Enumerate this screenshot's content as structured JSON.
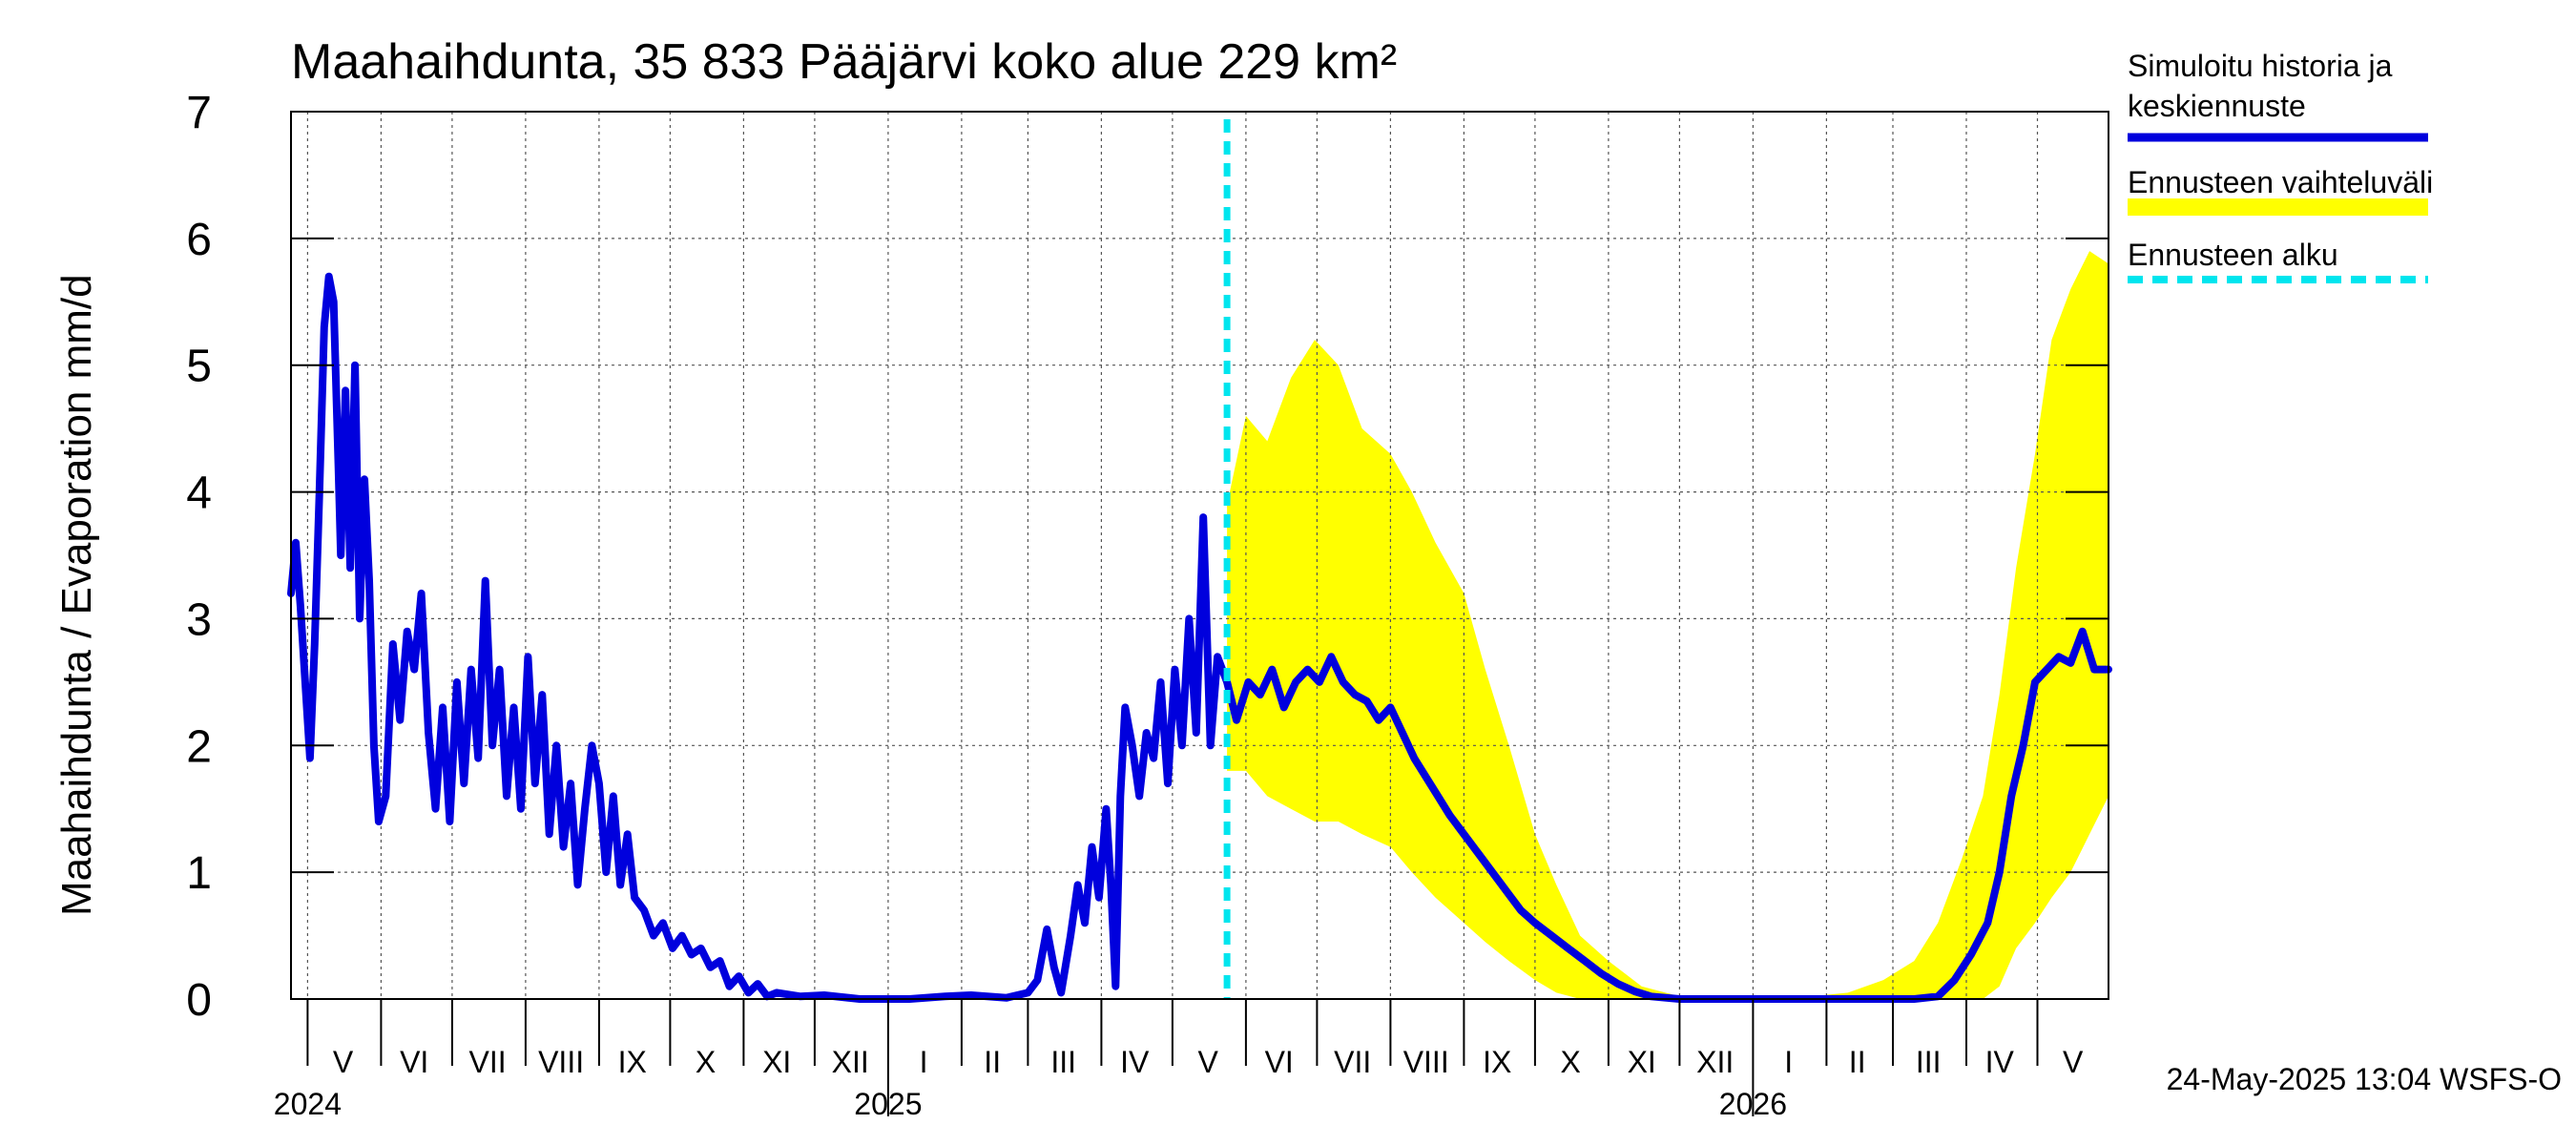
{
  "chart_data": {
    "type": "line",
    "title": "Maahaihdunta, 35 833 Pääjärvi koko alue 229 km²",
    "ylabel": "Maahaihdunta / Evaporation   mm/d",
    "ylim": [
      0,
      7
    ],
    "yticks": [
      0,
      1,
      2,
      3,
      4,
      5,
      6,
      7
    ],
    "grid": true,
    "legend_position": "right",
    "xlim": [
      "2024-04-24",
      "2026-05-31"
    ],
    "forecast_start": "2025-05-24",
    "month_labels": [
      {
        "date": "2024-05-16",
        "text": "V"
      },
      {
        "date": "2024-06-15",
        "text": "VI"
      },
      {
        "date": "2024-07-16",
        "text": "VII"
      },
      {
        "date": "2024-08-16",
        "text": "VIII"
      },
      {
        "date": "2024-09-15",
        "text": "IX"
      },
      {
        "date": "2024-10-16",
        "text": "X"
      },
      {
        "date": "2024-11-15",
        "text": "XI"
      },
      {
        "date": "2024-12-16",
        "text": "XII"
      },
      {
        "date": "2025-01-16",
        "text": "I"
      },
      {
        "date": "2025-02-14",
        "text": "II"
      },
      {
        "date": "2025-03-16",
        "text": "III"
      },
      {
        "date": "2025-04-15",
        "text": "IV"
      },
      {
        "date": "2025-05-16",
        "text": "V"
      },
      {
        "date": "2025-06-15",
        "text": "VI"
      },
      {
        "date": "2025-07-16",
        "text": "VII"
      },
      {
        "date": "2025-08-16",
        "text": "VIII"
      },
      {
        "date": "2025-09-15",
        "text": "IX"
      },
      {
        "date": "2025-10-16",
        "text": "X"
      },
      {
        "date": "2025-11-15",
        "text": "XI"
      },
      {
        "date": "2025-12-16",
        "text": "XII"
      },
      {
        "date": "2026-01-16",
        "text": "I"
      },
      {
        "date": "2026-02-14",
        "text": "II"
      },
      {
        "date": "2026-03-16",
        "text": "III"
      },
      {
        "date": "2026-04-15",
        "text": "IV"
      },
      {
        "date": "2026-05-16",
        "text": "V"
      }
    ],
    "year_labels": [
      {
        "date": "2024-05-01",
        "text": "2024"
      },
      {
        "date": "2025-01-01",
        "text": "2025"
      },
      {
        "date": "2026-01-01",
        "text": "2026"
      }
    ],
    "legend": [
      {
        "label_lines": [
          "Simuloitu historia ja",
          "keskiennuste"
        ],
        "color": "#0000dd",
        "style": "solid"
      },
      {
        "label_lines": [
          "Ennusteen vaihteluväli"
        ],
        "color": "#ffff00",
        "style": "band"
      },
      {
        "label_lines": [
          "Ennusteen alku"
        ],
        "color": "#00e5ee",
        "style": "dashed"
      }
    ],
    "series": [
      {
        "name": "Simuloitu historia ja keskiennuste",
        "color": "#0000dd",
        "points": [
          [
            "2024-04-24",
            3.2
          ],
          [
            "2024-04-26",
            3.6
          ],
          [
            "2024-04-28",
            3.1
          ],
          [
            "2024-04-30",
            2.5
          ],
          [
            "2024-05-02",
            1.9
          ],
          [
            "2024-05-04",
            2.8
          ],
          [
            "2024-05-06",
            4.0
          ],
          [
            "2024-05-08",
            5.3
          ],
          [
            "2024-05-10",
            5.7
          ],
          [
            "2024-05-12",
            5.5
          ],
          [
            "2024-05-14",
            4.2
          ],
          [
            "2024-05-15",
            3.5
          ],
          [
            "2024-05-17",
            4.8
          ],
          [
            "2024-05-19",
            3.4
          ],
          [
            "2024-05-21",
            5.0
          ],
          [
            "2024-05-23",
            3.0
          ],
          [
            "2024-05-25",
            4.1
          ],
          [
            "2024-05-27",
            3.3
          ],
          [
            "2024-05-29",
            2.0
          ],
          [
            "2024-05-31",
            1.4
          ],
          [
            "2024-06-03",
            1.6
          ],
          [
            "2024-06-06",
            2.8
          ],
          [
            "2024-06-09",
            2.2
          ],
          [
            "2024-06-12",
            2.9
          ],
          [
            "2024-06-15",
            2.6
          ],
          [
            "2024-06-18",
            3.2
          ],
          [
            "2024-06-21",
            2.1
          ],
          [
            "2024-06-24",
            1.5
          ],
          [
            "2024-06-27",
            2.3
          ],
          [
            "2024-06-30",
            1.4
          ],
          [
            "2024-07-03",
            2.5
          ],
          [
            "2024-07-06",
            1.7
          ],
          [
            "2024-07-09",
            2.6
          ],
          [
            "2024-07-12",
            1.9
          ],
          [
            "2024-07-15",
            3.3
          ],
          [
            "2024-07-18",
            2.0
          ],
          [
            "2024-07-21",
            2.6
          ],
          [
            "2024-07-24",
            1.6
          ],
          [
            "2024-07-27",
            2.3
          ],
          [
            "2024-07-30",
            1.5
          ],
          [
            "2024-08-02",
            2.7
          ],
          [
            "2024-08-05",
            1.7
          ],
          [
            "2024-08-08",
            2.4
          ],
          [
            "2024-08-11",
            1.3
          ],
          [
            "2024-08-14",
            2.0
          ],
          [
            "2024-08-17",
            1.2
          ],
          [
            "2024-08-20",
            1.7
          ],
          [
            "2024-08-23",
            0.9
          ],
          [
            "2024-08-26",
            1.5
          ],
          [
            "2024-08-29",
            2.0
          ],
          [
            "2024-09-01",
            1.7
          ],
          [
            "2024-09-04",
            1.0
          ],
          [
            "2024-09-07",
            1.6
          ],
          [
            "2024-09-10",
            0.9
          ],
          [
            "2024-09-13",
            1.3
          ],
          [
            "2024-09-16",
            0.8
          ],
          [
            "2024-09-20",
            0.7
          ],
          [
            "2024-09-24",
            0.5
          ],
          [
            "2024-09-28",
            0.6
          ],
          [
            "2024-10-02",
            0.4
          ],
          [
            "2024-10-06",
            0.5
          ],
          [
            "2024-10-10",
            0.35
          ],
          [
            "2024-10-14",
            0.4
          ],
          [
            "2024-10-18",
            0.25
          ],
          [
            "2024-10-22",
            0.3
          ],
          [
            "2024-10-26",
            0.1
          ],
          [
            "2024-10-30",
            0.18
          ],
          [
            "2024-11-03",
            0.05
          ],
          [
            "2024-11-07",
            0.12
          ],
          [
            "2024-11-11",
            0.02
          ],
          [
            "2024-11-15",
            0.05
          ],
          [
            "2024-11-25",
            0.02
          ],
          [
            "2024-12-05",
            0.03
          ],
          [
            "2024-12-20",
            0.0
          ],
          [
            "2025-01-10",
            0.0
          ],
          [
            "2025-01-25",
            0.02
          ],
          [
            "2025-02-05",
            0.03
          ],
          [
            "2025-02-20",
            0.01
          ],
          [
            "2025-03-01",
            0.05
          ],
          [
            "2025-03-05",
            0.15
          ],
          [
            "2025-03-09",
            0.55
          ],
          [
            "2025-03-12",
            0.25
          ],
          [
            "2025-03-15",
            0.05
          ],
          [
            "2025-03-19",
            0.5
          ],
          [
            "2025-03-22",
            0.9
          ],
          [
            "2025-03-25",
            0.6
          ],
          [
            "2025-03-28",
            1.2
          ],
          [
            "2025-03-31",
            0.8
          ],
          [
            "2025-04-03",
            1.5
          ],
          [
            "2025-04-05",
            0.9
          ],
          [
            "2025-04-07",
            0.1
          ],
          [
            "2025-04-09",
            1.6
          ],
          [
            "2025-04-11",
            2.3
          ],
          [
            "2025-04-14",
            2.0
          ],
          [
            "2025-04-17",
            1.6
          ],
          [
            "2025-04-20",
            2.1
          ],
          [
            "2025-04-23",
            1.9
          ],
          [
            "2025-04-26",
            2.5
          ],
          [
            "2025-04-29",
            1.7
          ],
          [
            "2025-05-02",
            2.6
          ],
          [
            "2025-05-05",
            2.0
          ],
          [
            "2025-05-08",
            3.0
          ],
          [
            "2025-05-11",
            2.1
          ],
          [
            "2025-05-14",
            3.8
          ],
          [
            "2025-05-17",
            2.0
          ],
          [
            "2025-05-20",
            2.7
          ],
          [
            "2025-05-24",
            2.5
          ],
          [
            "2025-05-28",
            2.2
          ],
          [
            "2025-06-02",
            2.5
          ],
          [
            "2025-06-07",
            2.4
          ],
          [
            "2025-06-12",
            2.6
          ],
          [
            "2025-06-17",
            2.3
          ],
          [
            "2025-06-22",
            2.5
          ],
          [
            "2025-06-27",
            2.6
          ],
          [
            "2025-07-02",
            2.5
          ],
          [
            "2025-07-07",
            2.7
          ],
          [
            "2025-07-12",
            2.5
          ],
          [
            "2025-07-17",
            2.4
          ],
          [
            "2025-07-22",
            2.35
          ],
          [
            "2025-07-27",
            2.2
          ],
          [
            "2025-08-01",
            2.3
          ],
          [
            "2025-08-06",
            2.1
          ],
          [
            "2025-08-11",
            1.9
          ],
          [
            "2025-08-16",
            1.75
          ],
          [
            "2025-08-21",
            1.6
          ],
          [
            "2025-08-26",
            1.45
          ],
          [
            "2025-09-01",
            1.3
          ],
          [
            "2025-09-07",
            1.15
          ],
          [
            "2025-09-13",
            1.0
          ],
          [
            "2025-09-19",
            0.85
          ],
          [
            "2025-09-25",
            0.7
          ],
          [
            "2025-10-01",
            0.6
          ],
          [
            "2025-10-08",
            0.5
          ],
          [
            "2025-10-15",
            0.4
          ],
          [
            "2025-10-22",
            0.3
          ],
          [
            "2025-10-29",
            0.2
          ],
          [
            "2025-11-05",
            0.12
          ],
          [
            "2025-11-12",
            0.06
          ],
          [
            "2025-11-19",
            0.02
          ],
          [
            "2025-12-01",
            0.0
          ],
          [
            "2026-01-15",
            0.0
          ],
          [
            "2026-02-15",
            0.0
          ],
          [
            "2026-03-10",
            0.0
          ],
          [
            "2026-03-20",
            0.02
          ],
          [
            "2026-03-27",
            0.15
          ],
          [
            "2026-04-03",
            0.35
          ],
          [
            "2026-04-10",
            0.6
          ],
          [
            "2026-04-15",
            1.0
          ],
          [
            "2026-04-20",
            1.6
          ],
          [
            "2026-04-25",
            2.0
          ],
          [
            "2026-04-30",
            2.5
          ],
          [
            "2026-05-05",
            2.6
          ],
          [
            "2026-05-10",
            2.7
          ],
          [
            "2026-05-15",
            2.65
          ],
          [
            "2026-05-20",
            2.9
          ],
          [
            "2026-05-25",
            2.6
          ],
          [
            "2026-05-31",
            2.6
          ]
        ]
      }
    ],
    "band": {
      "name": "Ennusteen vaihteluväli",
      "color": "#ffff00",
      "points": [
        [
          "2025-05-24",
          1.8,
          3.9
        ],
        [
          "2025-06-01",
          1.8,
          4.6
        ],
        [
          "2025-06-10",
          1.6,
          4.4
        ],
        [
          "2025-06-20",
          1.5,
          4.9
        ],
        [
          "2025-06-30",
          1.4,
          5.2
        ],
        [
          "2025-07-10",
          1.4,
          5.0
        ],
        [
          "2025-07-20",
          1.3,
          4.5
        ],
        [
          "2025-08-01",
          1.2,
          4.3
        ],
        [
          "2025-08-10",
          1.0,
          4.0
        ],
        [
          "2025-08-20",
          0.8,
          3.6
        ],
        [
          "2025-09-01",
          0.6,
          3.2
        ],
        [
          "2025-09-10",
          0.45,
          2.6
        ],
        [
          "2025-09-20",
          0.3,
          2.0
        ],
        [
          "2025-10-01",
          0.15,
          1.3
        ],
        [
          "2025-10-10",
          0.05,
          0.9
        ],
        [
          "2025-10-20",
          0.0,
          0.5
        ],
        [
          "2025-11-01",
          0.0,
          0.3
        ],
        [
          "2025-11-15",
          0.0,
          0.1
        ],
        [
          "2025-12-01",
          0.0,
          0.02
        ],
        [
          "2026-01-15",
          0.0,
          0.0
        ],
        [
          "2026-02-10",
          0.0,
          0.05
        ],
        [
          "2026-02-25",
          0.0,
          0.15
        ],
        [
          "2026-03-10",
          0.0,
          0.3
        ],
        [
          "2026-03-20",
          0.0,
          0.6
        ],
        [
          "2026-03-30",
          0.0,
          1.1
        ],
        [
          "2026-04-08",
          0.0,
          1.6
        ],
        [
          "2026-04-15",
          0.1,
          2.4
        ],
        [
          "2026-04-22",
          0.4,
          3.4
        ],
        [
          "2026-04-30",
          0.6,
          4.3
        ],
        [
          "2026-05-07",
          0.8,
          5.2
        ],
        [
          "2026-05-15",
          1.0,
          5.6
        ],
        [
          "2026-05-23",
          1.3,
          5.9
        ],
        [
          "2026-05-31",
          1.6,
          5.8
        ]
      ]
    }
  },
  "footer": {
    "timestamp": "24-May-2025 13:04 WSFS-O"
  }
}
